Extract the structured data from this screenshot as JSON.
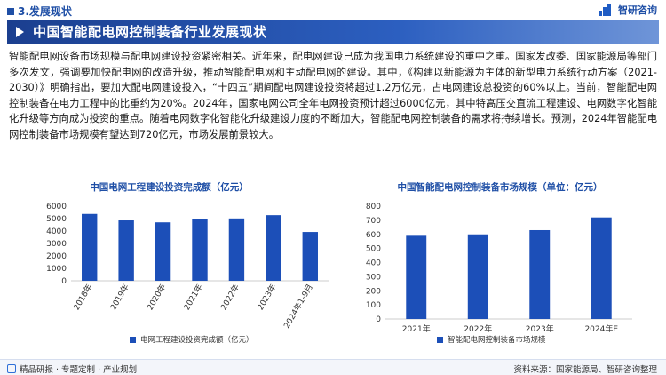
{
  "header": {
    "section": "3.发展现状",
    "brand": "智研咨询",
    "title": "中国智能配电网控制装备行业发展现状"
  },
  "body_text": "智能配电网设备市场规模与配电网建设投资紧密相关。近年来，配电网建设已成为我国电力系统建设的重中之重。国家发改委、国家能源局等部门多次发文，强调要加快配电网的改造升级，推动智能配电网和主动配电网的建设。其中，《构建以新能源为主体的新型电力系统行动方案（2021-2030）》明确指出，要加大配电网建设投入，“十四五”期间配电网建设投资将超过1.2万亿元，占电网建设总投资的60%以上。当前，智能配电网控制装备在电力工程中的比重约为20%。2024年，国家电网公司全年电网投资预计超过6000亿元，其中特高压交直流工程建设、电网数字化智能化升级等方向成为投资的重点。随着电网数字化智能化升级建设力度的不断加大，智能配电网控制装备的需求将持续增长。预测，2024年智能配电网控制装备市场规模有望达到720亿元，市场发展前景较大。",
  "colors": {
    "accent": "#1f4fa6",
    "bar": "#1c4fb8"
  },
  "chart_data": [
    {
      "type": "bar",
      "title": "中国电网工程建设投资完成额（亿元）",
      "categories": [
        "2018年",
        "2019年",
        "2020年",
        "2021年",
        "2022年",
        "2023年",
        "2024年1-9月"
      ],
      "series": [
        {
          "name": "电网工程建设投资完成额（亿元）",
          "values": [
            5374,
            4856,
            4699,
            4951,
            5012,
            5275,
            3924
          ]
        }
      ],
      "yticks": [
        0,
        1000,
        2000,
        3000,
        4000,
        5000,
        6000
      ],
      "ylim": [
        0,
        6000
      ],
      "grid": false,
      "legend": "bottom-left"
    },
    {
      "type": "bar",
      "title": "中国智能配电网控制装备市场规模（单位：亿元）",
      "categories": [
        "2021年",
        "2022年",
        "2023年",
        "2024年E"
      ],
      "series": [
        {
          "name": "智能配电网控制装备市场规模",
          "values": [
            590,
            600,
            630,
            720
          ]
        }
      ],
      "yticks": [
        0,
        100,
        200,
        300,
        400,
        500,
        600,
        700,
        800
      ],
      "ylim": [
        0,
        800
      ],
      "grid": false,
      "legend": "bottom-left"
    }
  ],
  "footer": {
    "left": "精品研报 · 专题定制 · 产业规划",
    "right": "资料来源：国家能源局、智研咨询整理"
  }
}
